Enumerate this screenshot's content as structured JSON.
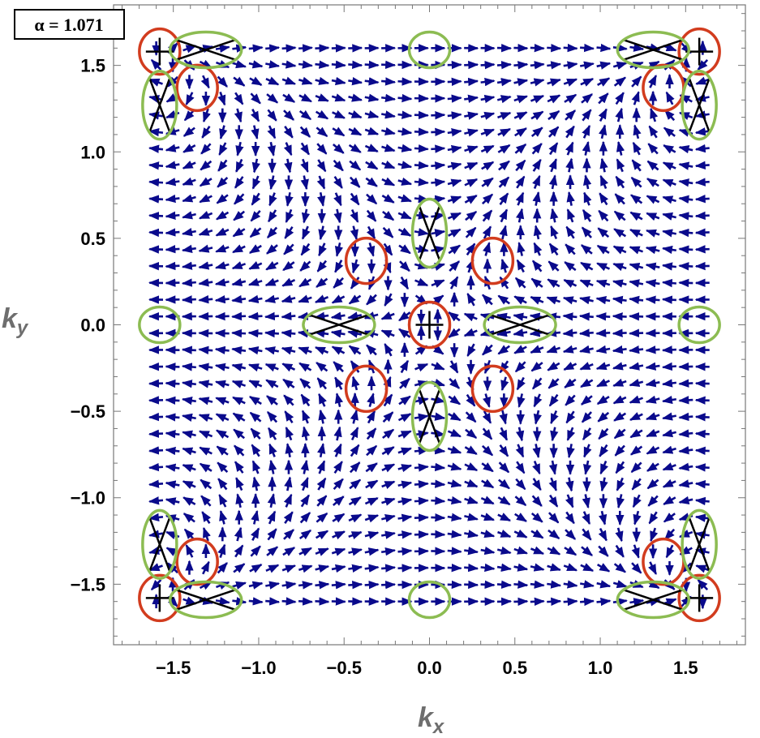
{
  "parameter_box": {
    "text": "α = 1.071"
  },
  "chart_data": {
    "type": "vector-field",
    "xlabel": {
      "main": "k",
      "sub": "x"
    },
    "ylabel": {
      "main": "k",
      "sub": "y"
    },
    "xlim": [
      -1.85,
      1.85
    ],
    "ylim": [
      -1.85,
      1.85
    ],
    "x_ticks": [
      {
        "value": -1.5,
        "label": "−1.5"
      },
      {
        "value": -1.0,
        "label": "−1.0"
      },
      {
        "value": -0.5,
        "label": "−0.5"
      },
      {
        "value": 0.0,
        "label": "0.0"
      },
      {
        "value": 0.5,
        "label": "0.5"
      },
      {
        "value": 1.0,
        "label": "1.0"
      },
      {
        "value": 1.5,
        "label": "1.5"
      }
    ],
    "y_ticks": [
      {
        "value": 1.5,
        "label": "1.5"
      },
      {
        "value": 1.0,
        "label": "1.0"
      },
      {
        "value": 0.5,
        "label": "0.5"
      },
      {
        "value": 0.0,
        "label": "0.0"
      },
      {
        "value": -0.5,
        "label": "−0.5"
      },
      {
        "value": -1.0,
        "label": "−1.0"
      },
      {
        "value": -1.5,
        "label": "−1.5"
      }
    ],
    "minor_tick_step": 0.1,
    "field": {
      "x_range": [
        -1.6,
        1.6
      ],
      "y_range": [
        -1.6,
        1.6
      ],
      "samples": 34,
      "function": "(cos(2*kx)-cos(2*ky), sin(2*kx)*sin(2*ky))"
    },
    "arrow_color": "#0a0a8c",
    "vortex_color": "#d23c1e",
    "antivortex_color": "#8cbc52",
    "vortices": [
      {
        "x": 0.0,
        "y": 0.0,
        "marker": "plus"
      },
      {
        "x": -0.37,
        "y": 0.37,
        "marker": "none"
      },
      {
        "x": 0.37,
        "y": 0.37,
        "marker": "none"
      },
      {
        "x": -0.37,
        "y": -0.37,
        "marker": "none"
      },
      {
        "x": 0.37,
        "y": -0.37,
        "marker": "none"
      },
      {
        "x": -1.58,
        "y": 1.58,
        "marker": "plus"
      },
      {
        "x": 1.58,
        "y": 1.58,
        "marker": "plus"
      },
      {
        "x": -1.58,
        "y": -1.58,
        "marker": "plus"
      },
      {
        "x": 1.58,
        "y": -1.58,
        "marker": "plus"
      },
      {
        "x": -1.36,
        "y": 1.37,
        "marker": "none"
      },
      {
        "x": 1.37,
        "y": 1.37,
        "marker": "none"
      },
      {
        "x": -1.36,
        "y": -1.37,
        "marker": "none"
      },
      {
        "x": 1.37,
        "y": -1.37,
        "marker": "none"
      }
    ],
    "antivortices": [
      {
        "x": 0.0,
        "y": 0.53,
        "orient": "vertical",
        "marker": "cross"
      },
      {
        "x": 0.0,
        "y": -0.53,
        "orient": "vertical",
        "marker": "cross"
      },
      {
        "x": -0.53,
        "y": 0.0,
        "orient": "horizontal",
        "marker": "cross"
      },
      {
        "x": 0.53,
        "y": 0.0,
        "orient": "horizontal",
        "marker": "cross"
      },
      {
        "x": 0.0,
        "y": 1.59,
        "orient": "round",
        "marker": "none"
      },
      {
        "x": 0.0,
        "y": -1.59,
        "orient": "round",
        "marker": "none"
      },
      {
        "x": -1.58,
        "y": 0.0,
        "orient": "round",
        "marker": "none"
      },
      {
        "x": 1.58,
        "y": 0.0,
        "orient": "round",
        "marker": "none"
      },
      {
        "x": -1.31,
        "y": 1.59,
        "orient": "horizontal",
        "marker": "cross"
      },
      {
        "x": 1.31,
        "y": 1.59,
        "orient": "horizontal",
        "marker": "cross"
      },
      {
        "x": -1.31,
        "y": -1.59,
        "orient": "horizontal",
        "marker": "cross"
      },
      {
        "x": 1.31,
        "y": -1.59,
        "orient": "horizontal",
        "marker": "cross"
      },
      {
        "x": -1.58,
        "y": 1.27,
        "orient": "vertical",
        "marker": "cross"
      },
      {
        "x": 1.58,
        "y": 1.27,
        "orient": "vertical",
        "marker": "cross"
      },
      {
        "x": -1.58,
        "y": -1.27,
        "orient": "vertical",
        "marker": "cross"
      },
      {
        "x": 1.58,
        "y": -1.27,
        "orient": "vertical",
        "marker": "cross"
      }
    ]
  }
}
